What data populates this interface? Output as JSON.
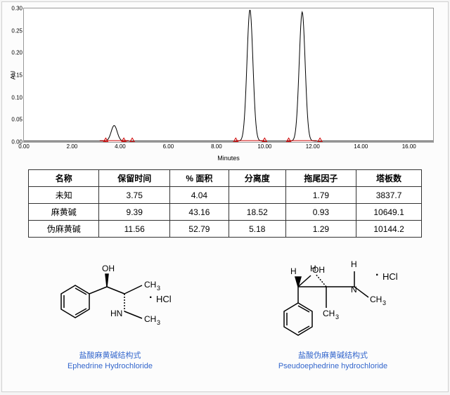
{
  "chart": {
    "type": "chromatogram",
    "y_label": "AU",
    "x_label": "Minutes",
    "xlim": [
      0,
      17
    ],
    "ylim": [
      0,
      0.3
    ],
    "y_ticks": [
      0.0,
      0.05,
      0.1,
      0.15,
      0.2,
      0.25,
      0.3
    ],
    "x_ticks": [
      0.0,
      2.0,
      4.0,
      6.0,
      8.0,
      10.0,
      12.0,
      14.0,
      16.0
    ],
    "line_color": "#000000",
    "baseline_color": "#cc0000",
    "marker_color": "#cc0000",
    "background_color": "#ffffff",
    "peaks": [
      {
        "rt": 3.75,
        "height": 0.035,
        "width": 0.35
      },
      {
        "rt": 9.39,
        "height": 0.295,
        "width": 0.35
      },
      {
        "rt": 11.56,
        "height": 0.29,
        "width": 0.35
      }
    ],
    "markers_x": [
      3.4,
      4.15,
      4.5,
      8.8,
      10.0,
      11.0,
      12.3
    ]
  },
  "table": {
    "headers": [
      "名称",
      "保留时间",
      "% 面积",
      "分离度",
      "拖尾因子",
      "塔板数"
    ],
    "rows": [
      [
        "未知",
        "3.75",
        "4.04",
        "",
        "1.79",
        "3837.7"
      ],
      [
        "麻黄碱",
        "9.39",
        "43.16",
        "18.52",
        "0.93",
        "10649.1"
      ],
      [
        "伪麻黄碱",
        "11.56",
        "52.79",
        "5.18",
        "1.29",
        "10144.2"
      ]
    ]
  },
  "structures": {
    "left": {
      "line1": "盐酸麻黄碱结构式",
      "line2": "Ephedrine Hydrochloride"
    },
    "right": {
      "line1": "盐酸伪麻黄碱结构式",
      "line2": "Pseudoephedrine hydrochloride"
    },
    "atom_color": "#000000",
    "bond_color": "#000000"
  }
}
